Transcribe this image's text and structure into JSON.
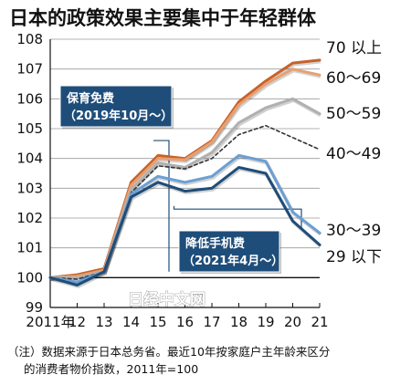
{
  "chart_data": {
    "type": "line",
    "title": "日本的政策效果主要集中于年轻群体",
    "x": [
      "2011年",
      "12",
      "13",
      "14",
      "15",
      "16",
      "17",
      "18",
      "19",
      "20",
      "21"
    ],
    "ylim": [
      99,
      108
    ],
    "yticks": [
      99,
      100,
      101,
      102,
      103,
      104,
      105,
      106,
      107,
      108
    ],
    "grid": "horizontal",
    "legend": "series labels at line ends (right)",
    "series": [
      {
        "name": "70 以上",
        "color": "#c8622a",
        "style": "solid",
        "values": [
          100,
          100.1,
          100.3,
          103.2,
          104.1,
          104.0,
          104.6,
          105.9,
          106.6,
          107.2,
          107.3
        ]
      },
      {
        "name": "60～69",
        "color": "#e8a070",
        "style": "solid",
        "values": [
          100,
          100.05,
          100.25,
          103.1,
          104.0,
          103.95,
          104.55,
          105.8,
          106.5,
          107.0,
          106.8
        ]
      },
      {
        "name": "50～59",
        "color": "#b0b0b0",
        "style": "solid",
        "values": [
          100,
          100.0,
          100.2,
          102.95,
          103.85,
          103.7,
          104.2,
          105.2,
          105.7,
          106.0,
          105.5
        ]
      },
      {
        "name": "40～49",
        "color": "#333333",
        "style": "dashed",
        "values": [
          100,
          99.95,
          100.2,
          102.85,
          103.75,
          103.65,
          104.0,
          104.8,
          105.1,
          104.7,
          104.3
        ]
      },
      {
        "name": "30～39",
        "color": "#6b9fd4",
        "style": "solid",
        "values": [
          100,
          99.85,
          100.2,
          102.8,
          103.4,
          103.2,
          103.4,
          104.1,
          103.9,
          102.2,
          101.5
        ]
      },
      {
        "name": "29 以下",
        "color": "#1e4d7a",
        "style": "solid",
        "values": [
          100,
          99.75,
          100.2,
          102.7,
          103.2,
          102.9,
          103.0,
          103.7,
          103.5,
          101.9,
          101.1
        ]
      }
    ],
    "annotations": [
      {
        "id": "childcare",
        "line1": "保育免费",
        "line2": "（2019年10月～）"
      },
      {
        "id": "mobile",
        "line1": "降低手机费",
        "line2": "（2021年4月～）"
      }
    ],
    "watermark": "日经中文网"
  },
  "note": {
    "line1": "（注）数据来源于日本总务省。最近10年按家庭户主年龄来区分",
    "line2": "的消费者物价指数，2011年=100"
  }
}
